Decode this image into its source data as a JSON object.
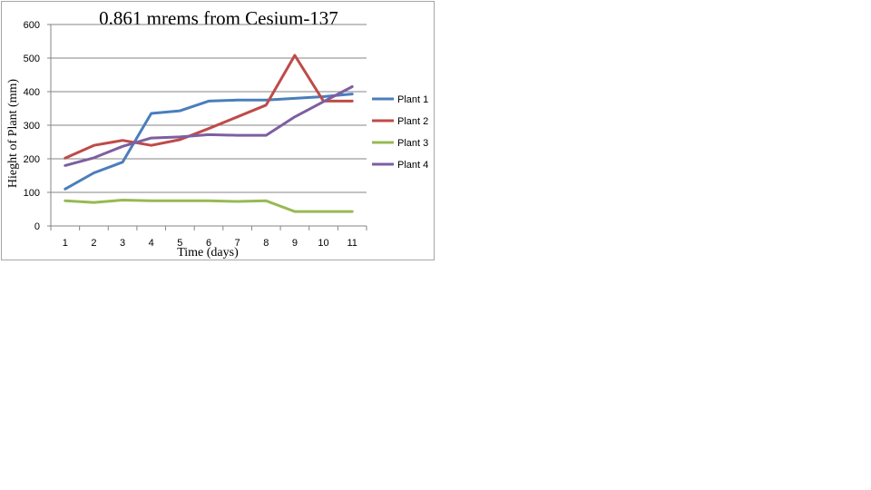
{
  "chart_data": {
    "type": "line",
    "title": "0.861 mrems from Cesium-137",
    "xlabel": "Time (days)",
    "ylabel": "Hieght of Plant (mm)",
    "categories": [
      "1",
      "2",
      "3",
      "4",
      "5",
      "6",
      "7",
      "8",
      "9",
      "10",
      "11"
    ],
    "ylim": [
      0,
      600
    ],
    "yticks": [
      0,
      100,
      200,
      300,
      400,
      500,
      600
    ],
    "grid": true,
    "legend": "right",
    "series": [
      {
        "name": "Plant 1",
        "color": "#4a7ebb",
        "values": [
          110,
          158,
          190,
          335,
          343,
          372,
          375,
          375,
          380,
          385,
          393
        ]
      },
      {
        "name": "Plant 2",
        "color": "#be4b48",
        "values": [
          202,
          240,
          255,
          240,
          257,
          290,
          325,
          360,
          508,
          372,
          372
        ]
      },
      {
        "name": "Plant 3",
        "color": "#98b954",
        "values": [
          75,
          70,
          77,
          75,
          75,
          75,
          73,
          75,
          43,
          43,
          43
        ]
      },
      {
        "name": "Plant 4",
        "color": "#7d5fa0",
        "values": [
          180,
          203,
          237,
          262,
          265,
          272,
          270,
          270,
          325,
          370,
          415
        ]
      }
    ]
  }
}
